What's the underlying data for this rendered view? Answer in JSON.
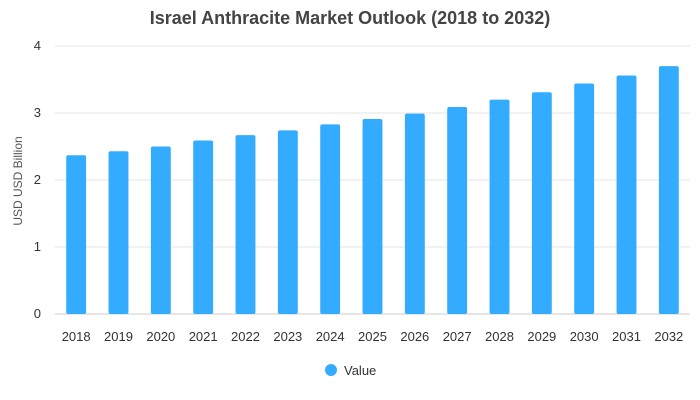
{
  "chart_data": {
    "type": "bar",
    "title": "Israel Anthracite Market Outlook (2018 to 2032)",
    "xlabel": "",
    "ylabel": "USD USD Billion",
    "categories": [
      "2018",
      "2019",
      "2020",
      "2021",
      "2022",
      "2023",
      "2024",
      "2025",
      "2026",
      "2027",
      "2028",
      "2029",
      "2030",
      "2031",
      "2032"
    ],
    "series": [
      {
        "name": "Value",
        "values": [
          2.37,
          2.43,
          2.5,
          2.59,
          2.67,
          2.74,
          2.83,
          2.91,
          2.99,
          3.09,
          3.2,
          3.31,
          3.44,
          3.56,
          3.7
        ]
      }
    ],
    "ylim": [
      0,
      4
    ],
    "yticks": [
      "0",
      "1",
      "2",
      "3",
      "4"
    ],
    "grid": true,
    "legend": "bottom-center",
    "bar_color": "#33acff",
    "grid_color": "#e6e6e6"
  }
}
